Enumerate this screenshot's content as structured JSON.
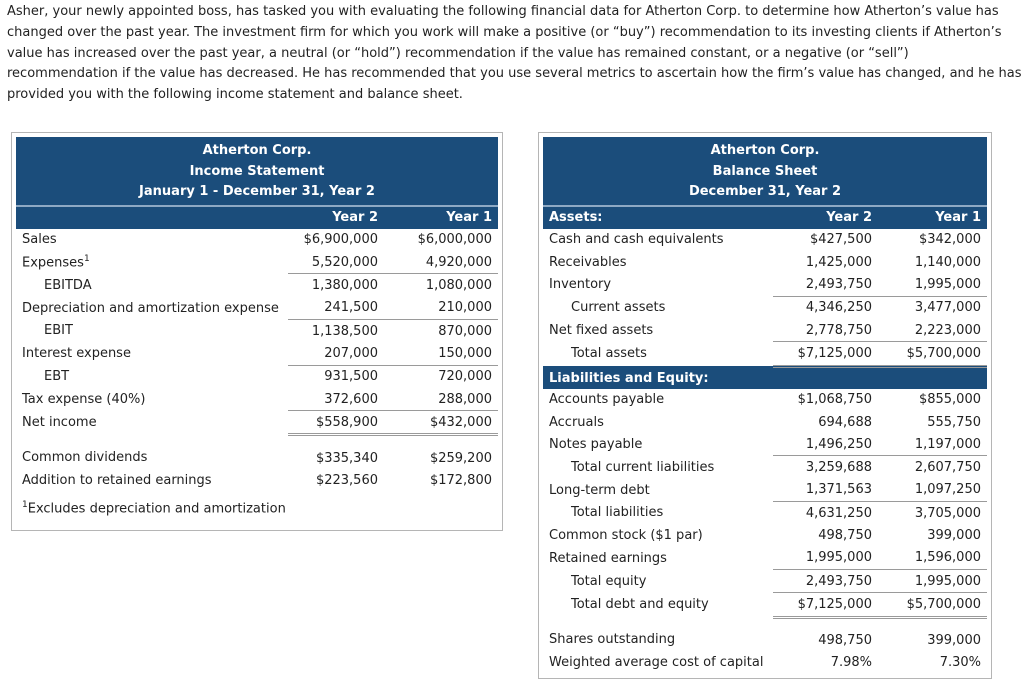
{
  "intro": "Asher, your newly appointed boss, has tasked you with evaluating the following financial data for Atherton Corp. to determine how Atherton’s value has changed over the past year. The investment firm for which you work will make a positive (or “buy”) recommendation to its investing clients if Atherton’s value has increased over the past year, a neutral (or “hold”) recommendation if the value has remained constant, or a negative (or “sell”) recommendation if the value has decreased. He has recommended that you use several metrics to ascertain how the firm’s value has changed, and he has provided you with the following income statement and balance sheet.",
  "income_statement": {
    "title": [
      "Atherton Corp.",
      "Income Statement",
      "January 1 - December 31, Year 2"
    ],
    "columns": [
      "",
      "Year 2",
      "Year 1"
    ],
    "rows": [
      {
        "label": "Sales",
        "values": [
          "$6,900,000",
          "$6,000,000"
        ]
      },
      {
        "label": "Expenses",
        "note": "1",
        "values": [
          "5,520,000",
          "4,920,000"
        ]
      },
      {
        "label": "EBITDA",
        "values": [
          "1,380,000",
          "1,080,000"
        ]
      },
      {
        "label": "Depreciation and amortization expense",
        "values": [
          "241,500",
          "210,000"
        ]
      },
      {
        "label": "EBIT",
        "values": [
          "1,138,500",
          "870,000"
        ]
      },
      {
        "label": "Interest expense",
        "values": [
          "207,000",
          "150,000"
        ]
      },
      {
        "label": "EBT",
        "values": [
          "931,500",
          "720,000"
        ]
      },
      {
        "label": "Tax expense (40%)",
        "values": [
          "372,600",
          "288,000"
        ]
      },
      {
        "label": "Net income",
        "values": [
          "$558,900",
          "$432,000"
        ]
      },
      {
        "label": "Common dividends",
        "values": [
          "$335,340",
          "$259,200"
        ]
      },
      {
        "label": "Addition to retained earnings",
        "values": [
          "$223,560",
          "$172,800"
        ]
      }
    ],
    "footnote": {
      "marker": "1",
      "text": "Excludes depreciation and amortization"
    }
  },
  "balance_sheet": {
    "title": [
      "Atherton Corp.",
      "Balance Sheet",
      "December 31, Year 2"
    ],
    "columns": [
      "Assets:",
      "Year 2",
      "Year 1"
    ],
    "rows": [
      {
        "label": "Cash and cash equivalents",
        "values": [
          "$427,500",
          "$342,000"
        ]
      },
      {
        "label": "Receivables",
        "values": [
          "1,425,000",
          "1,140,000"
        ]
      },
      {
        "label": "Inventory",
        "values": [
          "2,493,750",
          "1,995,000"
        ]
      },
      {
        "label": "Current assets",
        "values": [
          "4,346,250",
          "3,477,000"
        ]
      },
      {
        "label": "Net fixed assets",
        "values": [
          "2,778,750",
          "2,223,000"
        ]
      },
      {
        "label": "Total assets",
        "values": [
          "$7,125,000",
          "$5,700,000"
        ]
      },
      {
        "heading": "Liabilities and Equity:"
      },
      {
        "label": "Accounts payable",
        "values": [
          "$1,068,750",
          "$855,000"
        ]
      },
      {
        "label": "Accruals",
        "values": [
          "694,688",
          "555,750"
        ]
      },
      {
        "label": "Notes payable",
        "values": [
          "1,496,250",
          "1,197,000"
        ]
      },
      {
        "label": "Total current liabilities",
        "values": [
          "3,259,688",
          "2,607,750"
        ]
      },
      {
        "label": "Long-term debt",
        "values": [
          "1,371,563",
          "1,097,250"
        ]
      },
      {
        "label": "Total liabilities",
        "values": [
          "4,631,250",
          "3,705,000"
        ]
      },
      {
        "label": "Common stock ($1 par)",
        "values": [
          "498,750",
          "399,000"
        ]
      },
      {
        "label": "Retained earnings",
        "values": [
          "1,995,000",
          "1,596,000"
        ]
      },
      {
        "label": "Total equity",
        "values": [
          "2,493,750",
          "1,995,000"
        ]
      },
      {
        "label": "Total debt and equity",
        "values": [
          "$7,125,000",
          "$5,700,000"
        ]
      },
      {
        "label": "Shares outstanding",
        "values": [
          "498,750",
          "399,000"
        ]
      },
      {
        "label": "Weighted average cost of capital",
        "values": [
          "7.98%",
          "7.30%"
        ]
      }
    ]
  }
}
